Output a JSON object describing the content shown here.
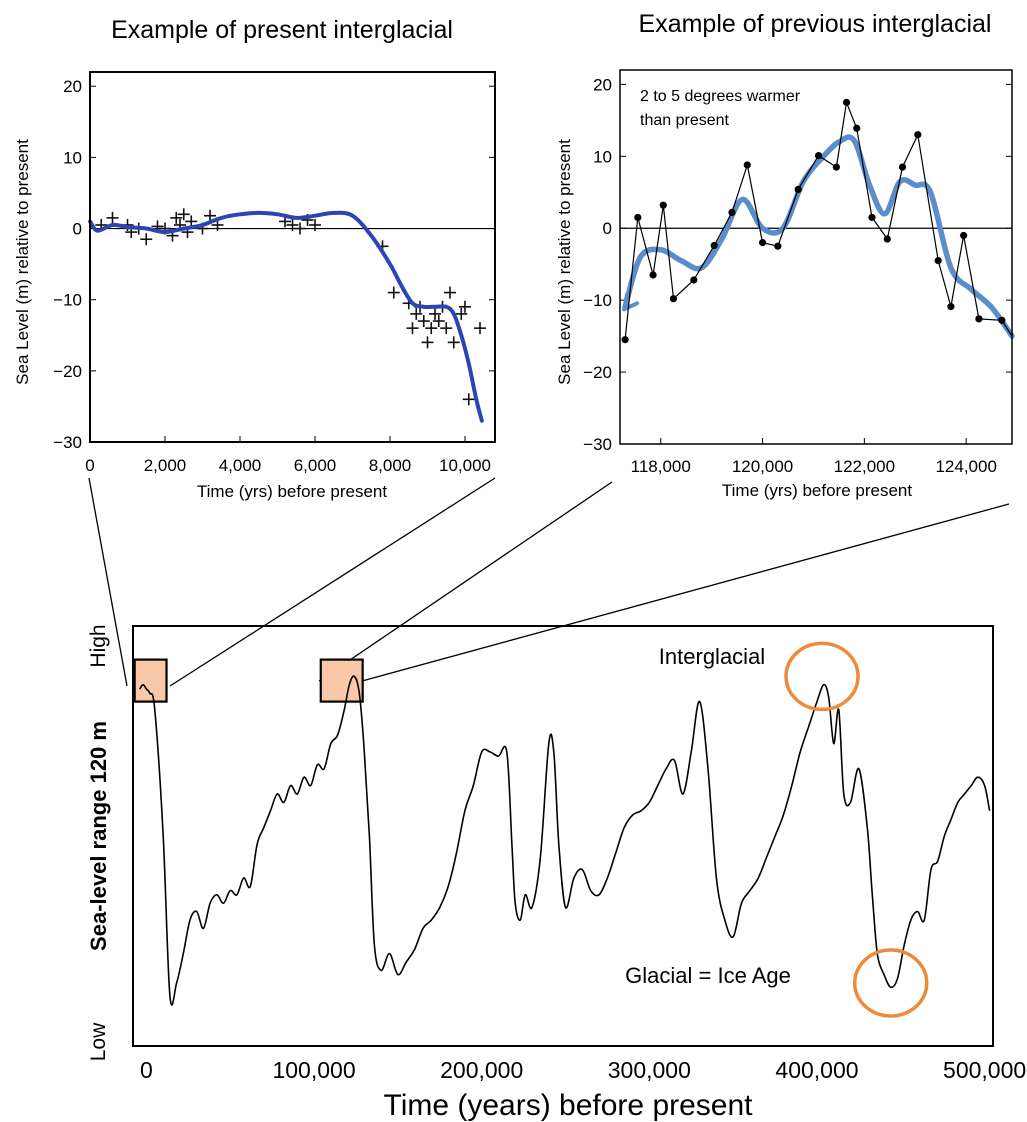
{
  "chart_data": [
    {
      "id": "present",
      "type": "scatter",
      "title": "Example of present interglacial",
      "xlabel": "Time (yrs) before present",
      "ylabel": "Sea Level (m) relative to present",
      "xlim": [
        0,
        10800
      ],
      "ylim": [
        -30,
        22
      ],
      "x_ticks": [
        0,
        2000,
        4000,
        6000,
        8000,
        10000
      ],
      "x_tick_labels": [
        "0",
        "2,000",
        "4,000",
        "6,000",
        "8,000",
        "10,000"
      ],
      "y_ticks": [
        20,
        10,
        0,
        -10,
        -20,
        -30
      ],
      "y_tick_labels": [
        "20",
        "10",
        "0",
        "−10",
        "−20",
        "−30"
      ],
      "colors": {
        "fit": "#2b46b4",
        "points": "#111111"
      },
      "series": [
        {
          "kind": "points",
          "x": [
            300,
            600,
            1000,
            1100,
            1300,
            1500,
            1800,
            2000,
            2200,
            2300,
            2400,
            2500,
            2600,
            2700,
            3000,
            3200,
            3400,
            5200,
            5400,
            5600,
            5800,
            6000,
            7800,
            8100,
            8500,
            8600,
            8700,
            8800,
            8900,
            9000,
            9100,
            9200,
            9300,
            9400,
            9500,
            9600,
            9700,
            9900,
            10000,
            10100,
            10400
          ],
          "y": [
            0.5,
            1.5,
            0.5,
            -0.5,
            0,
            -1.5,
            0.3,
            0,
            -1,
            1.5,
            0.5,
            2,
            -0.5,
            1,
            0,
            1.8,
            0.5,
            1,
            0.5,
            0,
            1.2,
            0.5,
            -2.5,
            -9,
            -10.5,
            -14,
            -12,
            -11,
            -13,
            -16,
            -14,
            -12,
            -13,
            -11,
            -14,
            -9,
            -16,
            -12,
            -11,
            -24,
            -14
          ]
        },
        {
          "kind": "fit",
          "x": [
            0,
            200,
            600,
            1000,
            1500,
            2000,
            2500,
            3000,
            3500,
            4000,
            4500,
            5000,
            5500,
            6000,
            6500,
            7000,
            7500,
            8000,
            8300,
            8600,
            8900,
            9200,
            9500,
            9700,
            9900,
            10100,
            10300,
            10450
          ],
          "y": [
            1,
            -0.3,
            0.5,
            0.2,
            0,
            -0.5,
            0,
            0.5,
            1.5,
            2,
            2.2,
            2,
            1.5,
            1.8,
            2.2,
            1.8,
            -1,
            -5,
            -8,
            -10.5,
            -11,
            -11,
            -11,
            -12,
            -15,
            -19,
            -24,
            -27
          ]
        }
      ]
    },
    {
      "id": "previous",
      "type": "line",
      "title": "Example of previous interglacial",
      "xlabel": "Time (yrs) before present",
      "ylabel": "Sea Level (m) relative to present",
      "annotation": "2 to 5 degrees warmer than present",
      "annotation_lines": [
        "2 to 5 degrees warmer",
        "than present"
      ],
      "xlim": [
        117200,
        124900
      ],
      "ylim": [
        -30,
        22
      ],
      "x_ticks": [
        118000,
        120000,
        122000,
        124000
      ],
      "x_tick_labels": [
        "118,000",
        "120,000",
        "122,000",
        "124,000"
      ],
      "y_ticks": [
        20,
        10,
        0,
        -10,
        -20,
        -30
      ],
      "y_tick_labels": [
        "20",
        "10",
        "0",
        "−10",
        "−20",
        "−30"
      ],
      "colors": {
        "smooth": "#5b8ccc",
        "raw": "#000000"
      },
      "series": [
        {
          "kind": "raw",
          "x": [
            117300,
            117550,
            117850,
            118050,
            118250,
            118650,
            119050,
            119400,
            119700,
            120000,
            120300,
            120700,
            121100,
            121450,
            121650,
            121850,
            122150,
            122450,
            122750,
            123050,
            123450,
            123700,
            123950,
            124250,
            124700,
            124900
          ],
          "y": [
            -15.5,
            1.5,
            -6.5,
            3.2,
            -9.8,
            -7.2,
            -2.4,
            2.2,
            8.8,
            -2,
            -2.5,
            5.4,
            10.1,
            8.5,
            17.5,
            13.9,
            1.5,
            -1.5,
            8.5,
            13,
            -4.5,
            -10.9,
            -1,
            -12.6,
            -12.8,
            -15
          ]
        },
        {
          "kind": "smooth",
          "x": [
            117300,
            117600,
            118000,
            118400,
            118800,
            119200,
            119600,
            120000,
            120400,
            120800,
            121200,
            121500,
            121800,
            122100,
            122400,
            122700,
            123000,
            123300,
            123700,
            124100,
            124500,
            124900
          ],
          "y": [
            -11,
            -4,
            -3,
            -4.5,
            -5.5,
            -1.5,
            4,
            0,
            0,
            6.5,
            10,
            12,
            12.2,
            6,
            2,
            6.5,
            6,
            5,
            -5.5,
            -8.5,
            -11,
            -15
          ]
        }
      ]
    },
    {
      "id": "long",
      "type": "line",
      "xlabel": "Time (years) before present",
      "ylabel": "Sea-level range 120 m",
      "y_end_labels": {
        "high": "High",
        "low": "Low"
      },
      "xlim": [
        -8000,
        505000
      ],
      "ylim": [
        0,
        100
      ],
      "x_ticks": [
        0,
        100000,
        200000,
        300000,
        400000,
        500000
      ],
      "x_tick_labels": [
        "0",
        "100,000",
        "200,000",
        "300,000",
        "400,000",
        "500,000"
      ],
      "annotations": {
        "interglacial": "Interglacial",
        "glacial": "Glacial = Ice Age"
      },
      "colors": {
        "line": "#000000",
        "highlight": "#f8c8a8",
        "circle": "#ef8a3a"
      },
      "highlights": [
        {
          "label": "present interglacial",
          "x": [
            -7000,
            12000
          ],
          "y": [
            82,
            92
          ]
        },
        {
          "label": "previous interglacial",
          "x": [
            104000,
            129000
          ],
          "y": [
            82,
            92
          ]
        }
      ],
      "circles": [
        {
          "target": "Interglacial",
          "x": 403000,
          "y": 88
        },
        {
          "target": "Glacial = Ice Age",
          "x": 444000,
          "y": 15
        }
      ],
      "series": [
        {
          "name": "sea level",
          "x": [
            -4000,
            -2000,
            0,
            2000,
            5000,
            10000,
            14000,
            18000,
            22000,
            26000,
            30000,
            34000,
            38000,
            42000,
            46000,
            50000,
            54000,
            58000,
            62000,
            66000,
            70000,
            74000,
            78000,
            82000,
            86000,
            90000,
            94000,
            98000,
            102000,
            106000,
            110000,
            114000,
            118000,
            121000,
            124000,
            127000,
            130000,
            133000,
            136000,
            140000,
            145000,
            150000,
            155000,
            160000,
            165000,
            170000,
            175000,
            180000,
            185000,
            190000,
            195000,
            200000,
            205000,
            210000,
            215000,
            218000,
            220000,
            223000,
            226000,
            230000,
            235000,
            240000,
            243000,
            246000,
            250000,
            255000,
            260000,
            265000,
            270000,
            275000,
            280000,
            285000,
            290000,
            295000,
            300000,
            305000,
            310000,
            315000,
            320000,
            325000,
            330000,
            335000,
            340000,
            345000,
            350000,
            355000,
            360000,
            365000,
            370000,
            375000,
            380000,
            385000,
            390000,
            395000,
            400000,
            404000,
            407000,
            410000,
            413000,
            416000,
            420000,
            425000,
            430000,
            433000,
            436000,
            440000,
            444000,
            448000,
            452000,
            456000,
            460000,
            464000,
            468000,
            472000,
            476000,
            480000,
            484000,
            488000,
            492000,
            496000,
            500000,
            503000
          ],
          "y": [
            85,
            86,
            85,
            84,
            80,
            50,
            12,
            15,
            22,
            30,
            32,
            28,
            34,
            36,
            34,
            37,
            36,
            40,
            38,
            48,
            52,
            56,
            60,
            58,
            62,
            60,
            64,
            62,
            67,
            66,
            72,
            74,
            80,
            86,
            88,
            84,
            70,
            50,
            24,
            18,
            22,
            17,
            20,
            23,
            28,
            30,
            33,
            38,
            46,
            56,
            62,
            70,
            70,
            69,
            70,
            48,
            34,
            30,
            36,
            33,
            45,
            72,
            70,
            48,
            33,
            40,
            42,
            37,
            36,
            40,
            46,
            52,
            55,
            56,
            58,
            62,
            66,
            68,
            60,
            70,
            82,
            66,
            40,
            30,
            26,
            34,
            37,
            40,
            45,
            50,
            55,
            62,
            70,
            76,
            82,
            86,
            83,
            72,
            80,
            60,
            58,
            66,
            52,
            36,
            22,
            17,
            14,
            16,
            24,
            30,
            32,
            30,
            42,
            44,
            50,
            54,
            58,
            60,
            62,
            64,
            62,
            56
          ]
        }
      ]
    }
  ]
}
